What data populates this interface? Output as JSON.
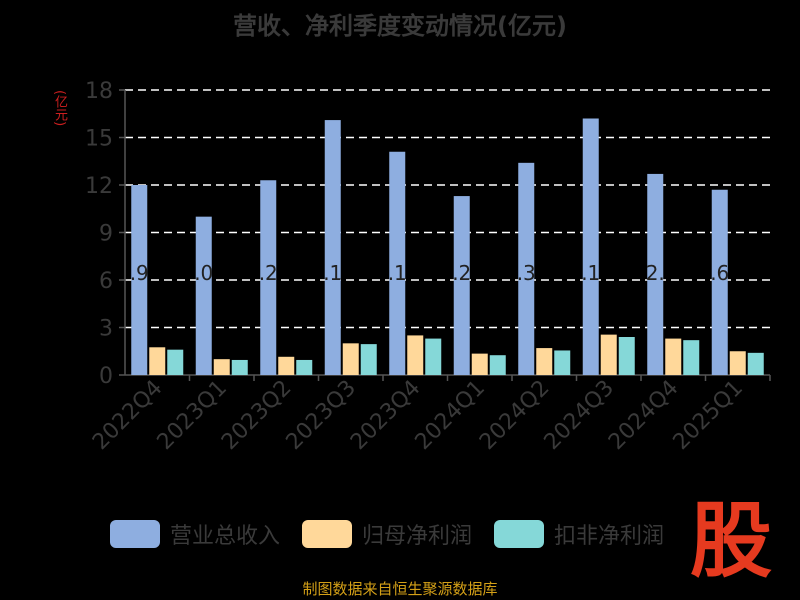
{
  "title": "营收、净利季度变动情况(亿元)",
  "source": "制图数据来自恒生聚源数据库",
  "logo_text": "股",
  "colors": {
    "revenue": "#8eaee0",
    "net_profit": "#ffd89a",
    "deducted_profit": "#85d8d8",
    "grid": "#ffffff",
    "axis": "#555555",
    "tick_label": "#3a3a3a",
    "ylabel": "#cc1f1f",
    "bar_label": "#222222"
  },
  "chart_data": {
    "type": "bar",
    "ylabel": "(亿元)",
    "ylim": [
      0,
      18
    ],
    "yticks": [
      0,
      3,
      6,
      9,
      12,
      15,
      18
    ],
    "grid": true,
    "legend_position": "bottom",
    "categories": [
      "2022Q4",
      "2023Q1",
      "2023Q2",
      "2023Q3",
      "2023Q4",
      "2024Q1",
      "2024Q2",
      "2024Q3",
      "2024Q4",
      "2025Q1"
    ],
    "series": [
      {
        "name": "营业总收入",
        "key": "revenue",
        "values": [
          12.0,
          10.0,
          12.3,
          16.1,
          14.1,
          11.3,
          13.4,
          16.2,
          12.7,
          11.7
        ]
      },
      {
        "name": "归母净利润",
        "key": "net_profit",
        "values": [
          1.75,
          1.0,
          1.15,
          2.0,
          2.5,
          1.35,
          1.7,
          2.55,
          2.3,
          1.5
        ]
      },
      {
        "name": "扣非净利润",
        "key": "deducted_profit",
        "values": [
          1.6,
          0.95,
          0.95,
          1.95,
          2.3,
          1.25,
          1.55,
          2.4,
          2.2,
          1.4
        ]
      }
    ],
    "bar_labels": [
      ".9",
      ".0",
      ".2",
      ".1",
      ".1",
      ".2",
      ".3",
      ".1",
      "2.",
      ".6"
    ]
  }
}
